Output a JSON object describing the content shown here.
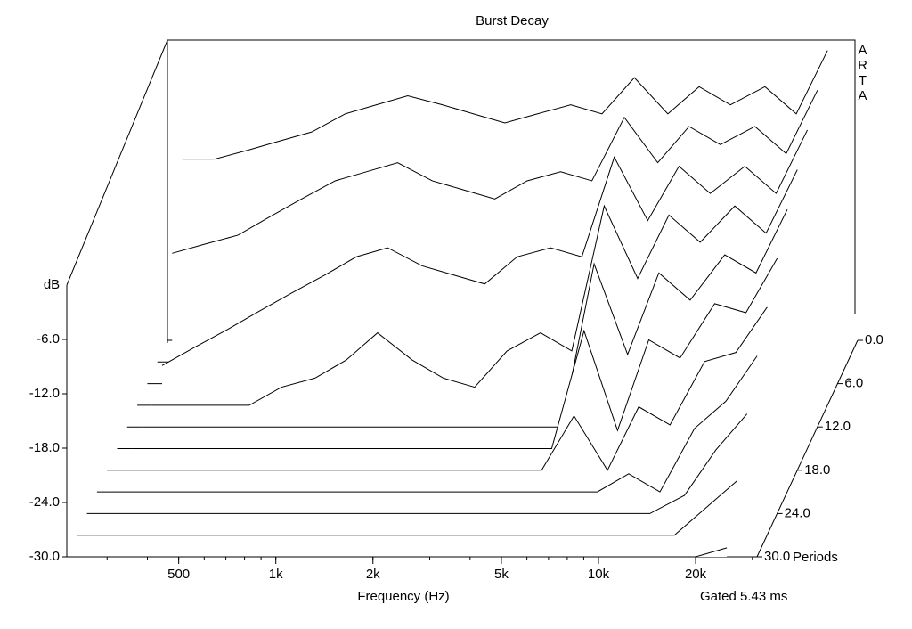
{
  "chart_data": {
    "type": "waterfall",
    "title": "Burst Decay",
    "ylabel": "dB",
    "xlabel": "Frequency (Hz)",
    "zlabel": "Periods",
    "annotation": "Gated 5.43 ms",
    "watermark": "ARTA",
    "log_x": true,
    "xlim": [
      225,
      31000
    ],
    "xticks": [
      500,
      {
        "value": 1000,
        "label": "1k"
      },
      {
        "value": 2000,
        "label": "2k"
      },
      {
        "value": 5000,
        "label": "5k"
      },
      {
        "value": 10000,
        "label": "10k"
      },
      {
        "value": 20000,
        "label": "20k"
      }
    ],
    "ylim": [
      -30,
      0
    ],
    "yticks": [
      {
        "value": -30,
        "label": "-30.0"
      },
      {
        "value": -24,
        "label": "-24.0"
      },
      {
        "value": -18,
        "label": "-18.0"
      },
      {
        "value": -12,
        "label": "-12.0"
      },
      {
        "value": -6,
        "label": "-6.0"
      }
    ],
    "zlim": [
      0,
      30
    ],
    "zticks": [
      {
        "value": 0,
        "label": "0.0"
      },
      {
        "value": 6,
        "label": "6.0"
      },
      {
        "value": 12,
        "label": "12.0"
      },
      {
        "value": 18,
        "label": "18.0"
      },
      {
        "value": 24,
        "label": "24.0"
      },
      {
        "value": 30,
        "label": "30.0"
      }
    ],
    "x": [
      250,
      315,
      400,
      500,
      630,
      800,
      1000,
      1250,
      1600,
      2000,
      2500,
      3150,
      4000,
      5000,
      6300,
      8000,
      10000,
      12500,
      16000,
      20000,
      25000
    ],
    "series": [
      {
        "z": 0,
        "values": [
          -10,
          -10,
          -9,
          -8,
          -7,
          -5,
          -4,
          -3,
          -4,
          -5,
          -6,
          -5,
          -4,
          -5,
          -1,
          -5,
          -2,
          -4,
          -2,
          -5,
          2
        ]
      },
      {
        "z": 3,
        "values": [
          -18,
          -17,
          -16,
          -14,
          -12,
          -10,
          -9,
          -8,
          -10,
          -11,
          -12,
          -10,
          -9,
          -10,
          -3,
          -8,
          -4,
          -6,
          -4,
          -7,
          0
        ]
      },
      {
        "z": 6,
        "values": [
          -28,
          -26,
          -24,
          -22,
          -20,
          -18,
          -16,
          -15,
          -17,
          -18,
          -19,
          -16,
          -15,
          -16,
          -5,
          -12,
          -6,
          -9,
          -6,
          -9,
          -2
        ]
      },
      {
        "z": 9,
        "values": [
          -30,
          -30,
          -30,
          -30,
          -28,
          -27,
          -25,
          -22,
          -25,
          -27,
          -28,
          -24,
          -22,
          -24,
          -8,
          -16,
          -9,
          -12,
          -8,
          -11,
          -4
        ]
      },
      {
        "z": 12,
        "values": [
          -30,
          -30,
          -30,
          -30,
          -30,
          -30,
          -30,
          -30,
          -30,
          -30,
          -30,
          -30,
          -30,
          -30,
          -12,
          -22,
          -13,
          -16,
          -11,
          -13,
          -6
        ]
      },
      {
        "z": 15,
        "values": [
          -30,
          -30,
          -30,
          -30,
          -30,
          -30,
          -30,
          -30,
          -30,
          -30,
          -30,
          -30,
          -30,
          -30,
          -17,
          -28,
          -18,
          -20,
          -14,
          -15,
          -9
        ]
      },
      {
        "z": 18,
        "values": [
          -30,
          -30,
          -30,
          -30,
          -30,
          -30,
          -30,
          -30,
          -30,
          -30,
          -30,
          -30,
          -30,
          -30,
          -24,
          -30,
          -23,
          -25,
          -18,
          -17,
          -12
        ]
      },
      {
        "z": 21,
        "values": [
          -30,
          -30,
          -30,
          -30,
          -30,
          -30,
          -30,
          -30,
          -30,
          -30,
          -30,
          -30,
          -30,
          -30,
          -30,
          -30,
          -28,
          -30,
          -23,
          -20,
          -15
        ]
      },
      {
        "z": 24,
        "values": [
          -30,
          -30,
          -30,
          -30,
          -30,
          -30,
          -30,
          -30,
          -30,
          -30,
          -30,
          -30,
          -30,
          -30,
          -30,
          -30,
          -30,
          -30,
          -28,
          -23,
          -19
        ]
      },
      {
        "z": 27,
        "values": [
          -30,
          -30,
          -30,
          -30,
          -30,
          -30,
          -30,
          -30,
          -30,
          -30,
          -30,
          -30,
          -30,
          -30,
          -30,
          -30,
          -30,
          -30,
          -30,
          -27,
          -24
        ]
      },
      {
        "z": 30,
        "values": [
          -30,
          -30,
          -30,
          -30,
          -30,
          -30,
          -30,
          -30,
          -30,
          -30,
          -30,
          -30,
          -30,
          -30,
          -30,
          -30,
          -30,
          -30,
          -30,
          -30,
          -29
        ]
      }
    ]
  }
}
